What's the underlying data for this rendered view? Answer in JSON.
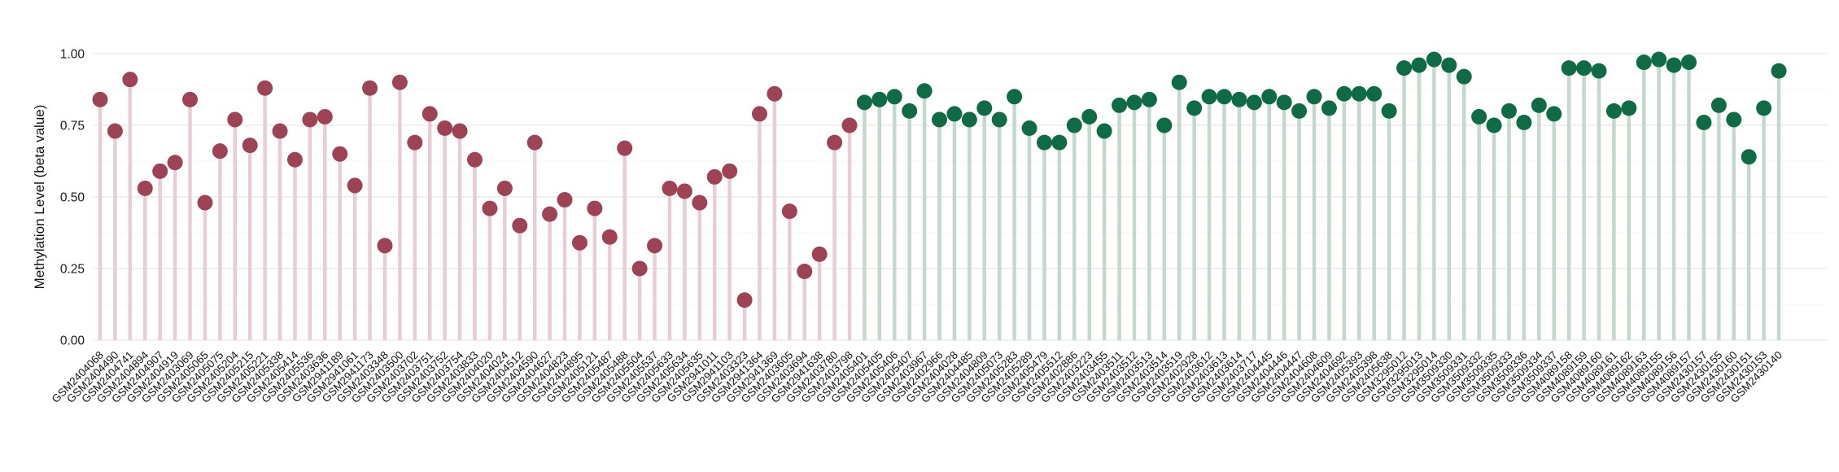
{
  "figure": {
    "background": "#ffffff",
    "ylabel": "Methylation Level (beta value)"
  },
  "chart_data": {
    "type": "scatter",
    "variant": "lollipop-stem",
    "title": "",
    "xlabel": "",
    "ylabel": "Methylation Level (beta value)",
    "ylim": [
      0,
      1
    ],
    "ytick_values": [
      0,
      0.25,
      0.5,
      0.75,
      1
    ],
    "ytick_labels": [
      "0.00",
      "0.25",
      "0.50",
      "0.75",
      "1.00"
    ],
    "grid": {
      "major": true,
      "minor": true,
      "major_color": "#e8e8e8",
      "minor_color": "#f4f4f4"
    },
    "legend": "none",
    "x_tick_rotation_deg": 45,
    "series": [
      {
        "name": "group-maroon",
        "dot_color": "#9e4355",
        "stem_color": "#e7ced4",
        "categories": [
          "GSM2404068",
          "GSM2404490",
          "GSM2404741",
          "GSM2404894",
          "GSM2404907",
          "GSM2404919",
          "GSM2403069",
          "GSM2405065",
          "GSM2405075",
          "GSM2405204",
          "GSM2405215",
          "GSM2405221",
          "GSM2405338",
          "GSM2405414",
          "GSM2405536",
          "GSM2403636",
          "GSM2941189",
          "GSM2941061",
          "GSM2941173",
          "GSM2403348",
          "GSM2403500",
          "GSM2403702",
          "GSM2403751",
          "GSM2403752",
          "GSM2403754",
          "GSM2403833",
          "GSM2404020",
          "GSM2404024",
          "GSM2404512",
          "GSM2404590",
          "GSM2404627",
          "GSM2404823",
          "GSM2404895",
          "GSM2405121",
          "GSM2405487",
          "GSM2405488",
          "GSM2405504",
          "GSM2405537",
          "GSM2405633",
          "GSM2405634",
          "GSM2405635",
          "GSM2941011",
          "GSM2941103",
          "GSM2403323",
          "GSM2941364",
          "GSM2941369",
          "GSM2403605",
          "GSM2403694",
          "GSM2941638",
          "GSM2403780",
          "GSM2403798"
        ],
        "values": [
          0.84,
          0.73,
          0.91,
          0.53,
          0.59,
          0.62,
          0.84,
          0.48,
          0.66,
          0.77,
          0.68,
          0.88,
          0.73,
          0.63,
          0.77,
          0.78,
          0.65,
          0.54,
          0.88,
          0.33,
          0.9,
          0.69,
          0.79,
          0.74,
          0.73,
          0.63,
          0.46,
          0.53,
          0.4,
          0.69,
          0.44,
          0.49,
          0.34,
          0.46,
          0.36,
          0.67,
          0.25,
          0.33,
          0.53,
          0.52,
          0.48,
          0.57,
          0.59,
          0.14,
          0.79,
          0.86,
          0.45,
          0.24,
          0.3,
          0.69,
          0.75
        ]
      },
      {
        "name": "group-green",
        "dot_color": "#0f6b45",
        "stem_color": "#c4d8cc",
        "categories": [
          "GSM2405401",
          "GSM2405405",
          "GSM2405406",
          "GSM2405407",
          "GSM2403967",
          "GSM2402966",
          "GSM2404028",
          "GSM2404485",
          "GSM2404809",
          "GSM2405073",
          "GSM2405283",
          "GSM2405289",
          "GSM2405479",
          "GSM2405512",
          "GSM2402886",
          "GSM2403223",
          "GSM2403455",
          "GSM2403511",
          "GSM2403512",
          "GSM2403513",
          "GSM2403514",
          "GSM2403519",
          "GSM2402928",
          "GSM2403612",
          "GSM2403613",
          "GSM2403614",
          "GSM2403717",
          "GSM2404445",
          "GSM2404446",
          "GSM2404447",
          "GSM2404608",
          "GSM2404609",
          "GSM2404692",
          "GSM2405393",
          "GSM2405398",
          "GSM2405638",
          "GSM3295012",
          "GSM3295013",
          "GSM3295014",
          "GSM3509330",
          "GSM3509331",
          "GSM3509332",
          "GSM3509335",
          "GSM3509333",
          "GSM3509336",
          "GSM3509334",
          "GSM3509337",
          "GSM4089158",
          "GSM4089159",
          "GSM4089160",
          "GSM4089161",
          "GSM4089162",
          "GSM4089163",
          "GSM4089155",
          "GSM4089156",
          "GSM4089157",
          "GSM2430157",
          "GSM2430155",
          "GSM2430160",
          "GSM2430151",
          "GSM2430153",
          "GSM2430140"
        ],
        "values": [
          0.83,
          0.84,
          0.85,
          0.8,
          0.87,
          0.77,
          0.79,
          0.77,
          0.81,
          0.77,
          0.85,
          0.74,
          0.69,
          0.69,
          0.75,
          0.78,
          0.73,
          0.82,
          0.83,
          0.84,
          0.75,
          0.9,
          0.81,
          0.85,
          0.85,
          0.84,
          0.83,
          0.85,
          0.83,
          0.8,
          0.85,
          0.81,
          0.86,
          0.86,
          0.86,
          0.8,
          0.95,
          0.96,
          0.98,
          0.96,
          0.92,
          0.78,
          0.75,
          0.8,
          0.76,
          0.82,
          0.79,
          0.95,
          0.95,
          0.94,
          0.8,
          0.81,
          0.97,
          0.98,
          0.96,
          0.97,
          0.76,
          0.82,
          0.77,
          0.64,
          0.81,
          0.94
        ]
      }
    ]
  }
}
